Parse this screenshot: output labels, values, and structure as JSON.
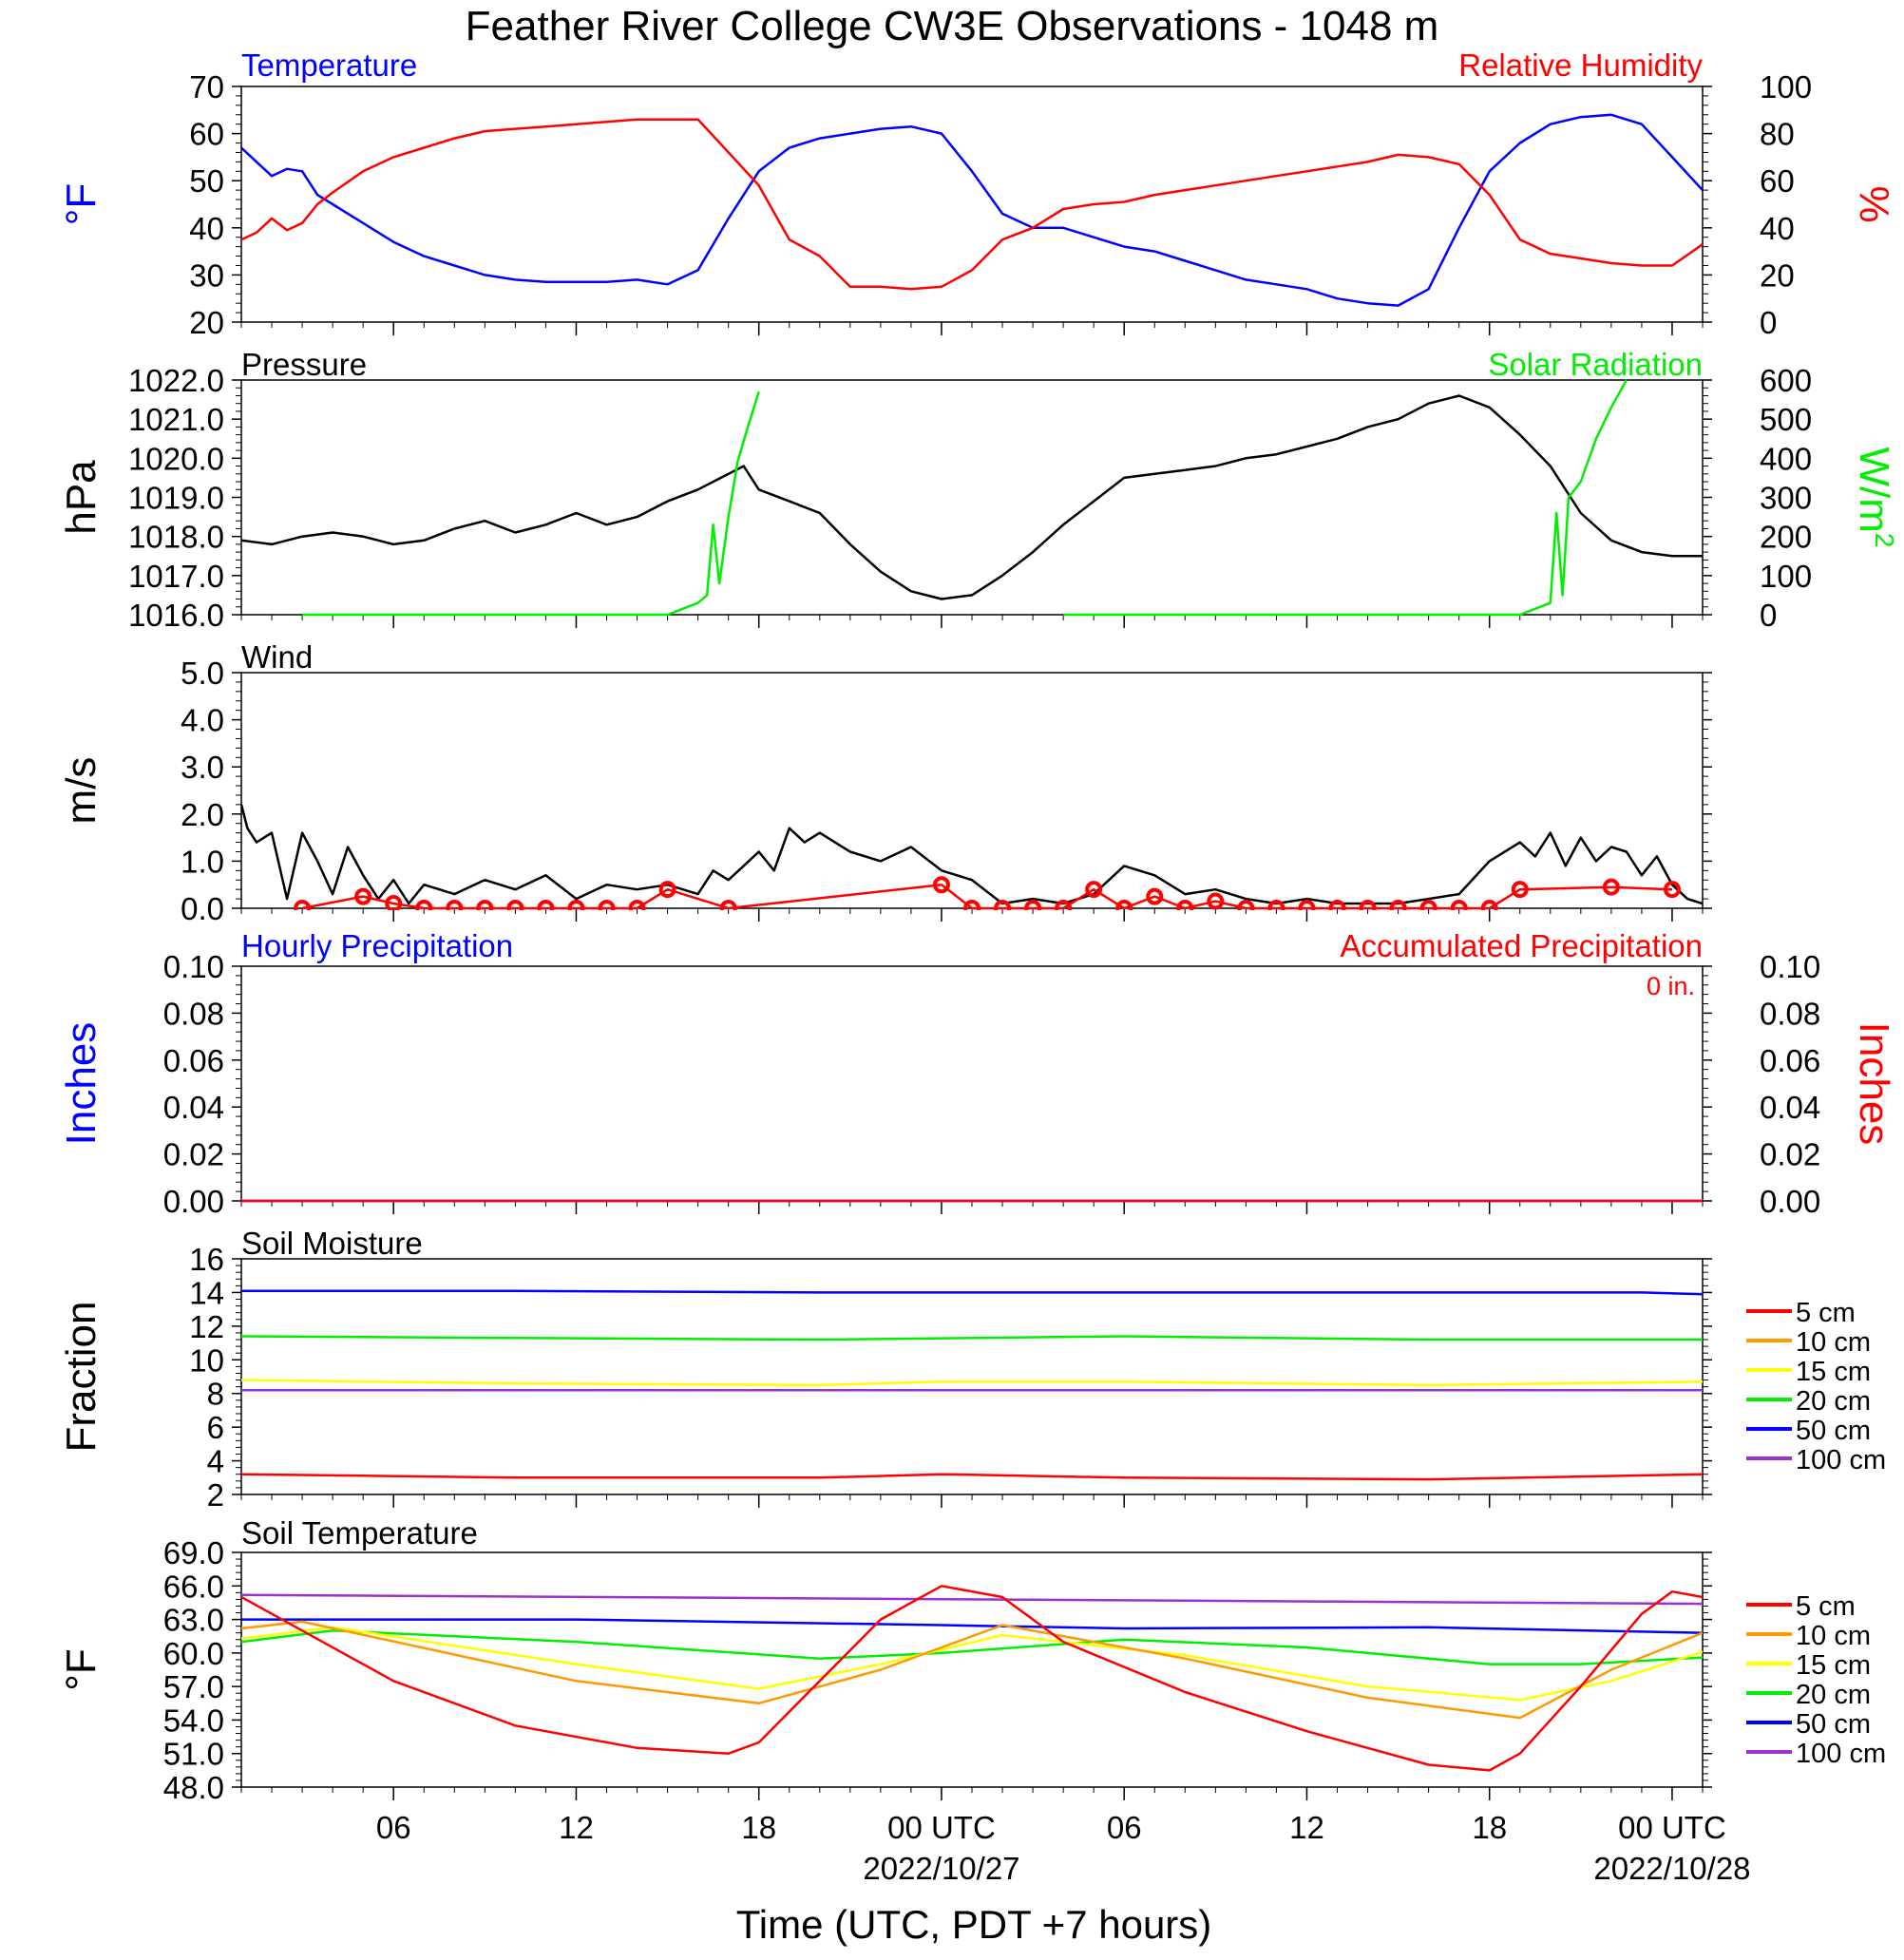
{
  "title": "Feather River College CW3E Observations - 1048 m",
  "xaxis": {
    "title": "Time (UTC, PDT +7 hours)",
    "range_hours": [
      1,
      49
    ],
    "ticks": [
      {
        "h": 6,
        "label": "06",
        "date": ""
      },
      {
        "h": 12,
        "label": "12",
        "date": ""
      },
      {
        "h": 18,
        "label": "18",
        "date": ""
      },
      {
        "h": 24,
        "label": "00 UTC",
        "date": "2022/10/27"
      },
      {
        "h": 30,
        "label": "06",
        "date": ""
      },
      {
        "h": 36,
        "label": "12",
        "date": ""
      },
      {
        "h": 42,
        "label": "18",
        "date": ""
      },
      {
        "h": 48,
        "label": "00 UTC",
        "date": "2022/10/28"
      }
    ]
  },
  "colors": {
    "blue": "#0000ff",
    "red": "#ff0000",
    "green": "#00ee00",
    "black": "#000000",
    "orange": "#ff9900",
    "yellow": "#ffff00",
    "purple": "#9933cc"
  },
  "chart_data": [
    {
      "id": "temp_rh",
      "type": "line",
      "title_left": "Temperature",
      "title_right": "Relative Humidity",
      "ylabel_left": "°F",
      "ylabel_right": "%",
      "ylim_left": [
        20,
        70
      ],
      "ylim_right": [
        0,
        100
      ],
      "yticks_left": [
        "70",
        "60",
        "50",
        "40",
        "30",
        "20"
      ],
      "yticks_right": [
        "100",
        "80",
        "60",
        "40",
        "20",
        "0"
      ],
      "series": [
        {
          "name": "Temperature",
          "axis": "left",
          "color": "#0000ff",
          "x": [
            1,
            1.5,
            2,
            2.5,
            3,
            3.5,
            4,
            5,
            6,
            7,
            8,
            9,
            10,
            11,
            12,
            13,
            14,
            15,
            16,
            17,
            18,
            19,
            20,
            21,
            22,
            23,
            24,
            25,
            26,
            27,
            28,
            29,
            30,
            31,
            32,
            33,
            34,
            35,
            36,
            37,
            38,
            39,
            40,
            41,
            42,
            43,
            44,
            45,
            46,
            47,
            48,
            49
          ],
          "y": [
            57,
            54,
            51,
            52.5,
            52,
            47,
            45,
            41,
            37,
            34,
            32,
            30,
            29,
            28.5,
            28.5,
            28.5,
            29,
            28,
            31,
            42,
            52,
            57,
            59,
            60,
            61,
            61.5,
            60,
            52,
            43,
            40,
            40,
            38,
            36,
            35,
            33,
            31,
            29,
            28,
            27,
            25,
            24,
            23.5,
            27,
            40,
            52,
            58,
            62,
            63.5,
            64,
            62,
            55,
            48
          ]
        },
        {
          "name": "Relative Humidity",
          "axis": "right",
          "color": "#ff0000",
          "x": [
            1,
            1.5,
            2,
            2.5,
            3,
            3.5,
            4,
            5,
            6,
            7,
            8,
            9,
            10,
            11,
            12,
            13,
            14,
            15,
            16,
            17,
            18,
            19,
            20,
            21,
            22,
            23,
            24,
            25,
            26,
            27,
            28,
            29,
            30,
            31,
            32,
            33,
            34,
            35,
            36,
            37,
            38,
            39,
            40,
            41,
            42,
            43,
            44,
            45,
            46,
            47,
            48,
            49
          ],
          "y": [
            35,
            38,
            44,
            39,
            42,
            50,
            55,
            64,
            70,
            74,
            78,
            81,
            82,
            83,
            84,
            85,
            86,
            86,
            86,
            72,
            58,
            35,
            28,
            15,
            15,
            14,
            15,
            22,
            35,
            40,
            48,
            50,
            51,
            54,
            56,
            58,
            60,
            62,
            64,
            66,
            68,
            71,
            70,
            67,
            54,
            35,
            29,
            27,
            25,
            24,
            24,
            33
          ]
        }
      ]
    },
    {
      "id": "pressure_solar",
      "type": "line",
      "title_left": "Pressure",
      "title_right": "Solar Radiation",
      "ylabel_left": "hPa",
      "ylabel_right": "W/m",
      "ylabel_right_sup": "2",
      "ylim_left": [
        1016,
        1022
      ],
      "ylim_right": [
        0,
        600
      ],
      "yticks_left": [
        "1022.0",
        "1021.0",
        "1020.0",
        "1019.0",
        "1018.0",
        "1017.0",
        "1016.0"
      ],
      "yticks_right": [
        "600",
        "500",
        "400",
        "300",
        "200",
        "100",
        "0"
      ],
      "series": [
        {
          "name": "Pressure",
          "axis": "left",
          "color": "#000000",
          "x": [
            1,
            2,
            3,
            4,
            5,
            6,
            7,
            8,
            9,
            10,
            11,
            12,
            13,
            14,
            15,
            16,
            17,
            17.5,
            18,
            19,
            20,
            21,
            22,
            23,
            24,
            25,
            26,
            27,
            28,
            29,
            30,
            31,
            32,
            33,
            34,
            35,
            36,
            37,
            38,
            39,
            40,
            41,
            42,
            43,
            44,
            45,
            46,
            47,
            48,
            49
          ],
          "y": [
            1017.9,
            1017.8,
            1018.0,
            1018.1,
            1018.0,
            1017.8,
            1017.9,
            1018.2,
            1018.4,
            1018.1,
            1018.3,
            1018.6,
            1018.3,
            1018.5,
            1018.9,
            1019.2,
            1019.6,
            1019.8,
            1019.2,
            1018.9,
            1018.6,
            1017.8,
            1017.1,
            1016.6,
            1016.4,
            1016.5,
            1017.0,
            1017.6,
            1018.3,
            1018.9,
            1019.5,
            1019.6,
            1019.7,
            1019.8,
            1020.0,
            1020.1,
            1020.3,
            1020.5,
            1020.8,
            1021.0,
            1021.4,
            1021.6,
            1021.3,
            1020.6,
            1019.8,
            1018.6,
            1017.9,
            1017.6,
            1017.5,
            1017.5
          ]
        },
        {
          "name": "Solar Radiation",
          "axis": "right",
          "color": "#00ee00",
          "x": [
            3,
            15,
            15.5,
            16,
            16.3,
            16.5,
            16.7,
            17,
            17.3,
            17.6,
            18
          ],
          "y": [
            0,
            0,
            15,
            30,
            50,
            230,
            80,
            250,
            390,
            470,
            570
          ],
          "x2": [
            28,
            43,
            43.5,
            44,
            44.2,
            44.4,
            44.6,
            45,
            45.5,
            46,
            46.5
          ],
          "y2": [
            0,
            0,
            15,
            30,
            260,
            50,
            300,
            340,
            450,
            530,
            600
          ]
        }
      ]
    },
    {
      "id": "wind",
      "type": "line",
      "title_left": "Wind",
      "ylabel_left": "m/s",
      "ylim_left": [
        0,
        5
      ],
      "yticks_left": [
        "5.0",
        "4.0",
        "3.0",
        "2.0",
        "1.0",
        "0.0"
      ],
      "series": [
        {
          "name": "Wind Speed",
          "axis": "left",
          "color": "#000000",
          "x": [
            1,
            1.2,
            1.5,
            2,
            2.5,
            3,
            3.5,
            4,
            4.5,
            5,
            5.5,
            6,
            6.5,
            7,
            8,
            9,
            10,
            11,
            12,
            13,
            14,
            15,
            16,
            16.5,
            17,
            17.5,
            18,
            18.5,
            19,
            19.5,
            20,
            21,
            22,
            23,
            24,
            25,
            26,
            27,
            28,
            29,
            30,
            31,
            32,
            33,
            34,
            35,
            36,
            37,
            38,
            39,
            40,
            41,
            42,
            43,
            43.5,
            44,
            44.5,
            45,
            45.5,
            46,
            46.5,
            47,
            47.5,
            48,
            48.5,
            49
          ],
          "y": [
            2.2,
            1.7,
            1.4,
            1.6,
            0.2,
            1.6,
            1.0,
            0.3,
            1.3,
            0.7,
            0.2,
            0.6,
            0.1,
            0.5,
            0.3,
            0.6,
            0.4,
            0.7,
            0.2,
            0.5,
            0.4,
            0.5,
            0.3,
            0.8,
            0.6,
            0.9,
            1.2,
            0.8,
            1.7,
            1.4,
            1.6,
            1.2,
            1.0,
            1.3,
            0.8,
            0.6,
            0.1,
            0.2,
            0.1,
            0.3,
            0.9,
            0.7,
            0.3,
            0.4,
            0.2,
            0.1,
            0.2,
            0.1,
            0.1,
            0.1,
            0.2,
            0.3,
            1.0,
            1.4,
            1.1,
            1.6,
            0.9,
            1.5,
            1.0,
            1.3,
            1.2,
            0.7,
            1.1,
            0.5,
            0.2,
            0.1
          ]
        },
        {
          "name": "Wind Direction",
          "axis": "left",
          "color": "#ff0000",
          "markers": true,
          "x": [
            3,
            5,
            6,
            7,
            8,
            9,
            10,
            11,
            12,
            13,
            14,
            15,
            17,
            24,
            25,
            26,
            27,
            28,
            29,
            30,
            31,
            32,
            33,
            34,
            35,
            36,
            37,
            38,
            39,
            40,
            41,
            42,
            43,
            46,
            48
          ],
          "y": [
            0,
            0.25,
            0.1,
            0,
            0,
            0,
            0,
            0,
            0,
            0,
            0,
            0.4,
            0,
            0.5,
            0,
            0,
            0,
            0,
            0.4,
            0,
            0.25,
            0,
            0.15,
            0,
            0,
            0,
            0,
            0,
            0,
            0,
            0,
            0,
            0.4,
            0.45,
            0.4
          ]
        }
      ]
    },
    {
      "id": "precip",
      "type": "line",
      "title_left": "Hourly Precipitation",
      "title_right": "Accumulated Precipitation",
      "annotation": "0 in.",
      "ylabel_left": "Inches",
      "ylabel_right": "Inches",
      "ylim_left": [
        0,
        0.1
      ],
      "ylim_right": [
        0,
        0.1
      ],
      "yticks_left": [
        "0.10",
        "0.08",
        "0.06",
        "0.04",
        "0.02",
        "0.00"
      ],
      "yticks_right": [
        "0.10",
        "0.08",
        "0.06",
        "0.04",
        "0.02",
        "0.00"
      ],
      "series": [
        {
          "name": "Hourly Precipitation",
          "axis": "left",
          "color": "#0000ff",
          "x": [
            1,
            49
          ],
          "y": [
            0,
            0
          ]
        },
        {
          "name": "Accumulated Precipitation",
          "axis": "right",
          "color": "#ff0000",
          "x": [
            1,
            49
          ],
          "y": [
            0,
            0
          ]
        }
      ]
    },
    {
      "id": "soil_moisture",
      "type": "line",
      "title_left": "Soil Moisture",
      "ylabel_left": "Fraction",
      "ylim_left": [
        2,
        16
      ],
      "yticks_left": [
        "16",
        "14",
        "12",
        "10",
        "8",
        "6",
        "4",
        "2"
      ],
      "legend": [
        "5 cm",
        "10 cm",
        "15 cm",
        "20 cm",
        "50 cm",
        "100 cm"
      ],
      "legend_colors": [
        "#ff0000",
        "#ff9900",
        "#ffff00",
        "#00ee00",
        "#0000ff",
        "#9933cc"
      ],
      "series": [
        {
          "name": "5 cm",
          "color": "#ff0000",
          "x": [
            1,
            10,
            20,
            24,
            30,
            40,
            49
          ],
          "y": [
            3.2,
            3.0,
            3.0,
            3.2,
            3.0,
            2.9,
            3.2
          ]
        },
        {
          "name": "15 cm",
          "color": "#ffff00",
          "x": [
            1,
            10,
            20,
            24,
            30,
            40,
            49
          ],
          "y": [
            8.8,
            8.6,
            8.5,
            8.7,
            8.7,
            8.5,
            8.7
          ]
        },
        {
          "name": "100 cm",
          "color": "#9933cc",
          "x": [
            1,
            49
          ],
          "y": [
            8.2,
            8.2
          ]
        },
        {
          "name": "20 cm",
          "color": "#00ee00",
          "x": [
            1,
            10,
            20,
            30,
            40,
            49
          ],
          "y": [
            11.4,
            11.3,
            11.2,
            11.4,
            11.2,
            11.2
          ]
        },
        {
          "name": "50 cm",
          "color": "#0000ff",
          "x": [
            1,
            10,
            20,
            30,
            40,
            47,
            49
          ],
          "y": [
            14.1,
            14.1,
            14.0,
            14.0,
            14.0,
            14.0,
            13.9
          ]
        }
      ]
    },
    {
      "id": "soil_temp",
      "type": "line",
      "title_left": "Soil Temperature",
      "ylabel_left": "°F",
      "ylim_left": [
        48,
        69
      ],
      "yticks_left": [
        "69.0",
        "66.0",
        "63.0",
        "60.0",
        "57.0",
        "54.0",
        "51.0",
        "48.0"
      ],
      "legend": [
        "5 cm",
        "10 cm",
        "15 cm",
        "20 cm",
        "50 cm",
        "100 cm"
      ],
      "legend_colors": [
        "#ff0000",
        "#ff9900",
        "#ffff00",
        "#00ee00",
        "#0000ff",
        "#9933cc"
      ],
      "series": [
        {
          "name": "100 cm",
          "color": "#9933cc",
          "x": [
            1,
            49
          ],
          "y": [
            65.2,
            64.4
          ]
        },
        {
          "name": "50 cm",
          "color": "#0000ff",
          "x": [
            1,
            12,
            24,
            30,
            40,
            49
          ],
          "y": [
            63.0,
            63.0,
            62.5,
            62.2,
            62.3,
            61.8
          ]
        },
        {
          "name": "20 cm",
          "color": "#00ee00",
          "x": [
            1,
            4,
            12,
            20,
            24,
            30,
            36,
            42,
            45,
            49
          ],
          "y": [
            61.0,
            62.0,
            61.0,
            59.5,
            60.0,
            61.2,
            60.5,
            59.0,
            59.0,
            59.6
          ]
        },
        {
          "name": "15 cm",
          "color": "#ffff00",
          "x": [
            1,
            4,
            12,
            18,
            22,
            26,
            32,
            38,
            43,
            46,
            49
          ],
          "y": [
            61.3,
            62.3,
            59.0,
            56.8,
            59.0,
            61.6,
            59.8,
            57.0,
            55.8,
            57.5,
            60.1
          ]
        },
        {
          "name": "10 cm",
          "color": "#ff9900",
          "x": [
            1,
            3,
            12,
            18,
            22,
            26,
            32,
            38,
            43,
            46,
            49
          ],
          "y": [
            62.2,
            62.8,
            57.5,
            55.5,
            58.5,
            62.5,
            59.5,
            56.0,
            54.2,
            58.5,
            61.8
          ]
        },
        {
          "name": "5 cm",
          "color": "#ff0000",
          "x": [
            1,
            3,
            6,
            10,
            14,
            17,
            18,
            20,
            22,
            24,
            26,
            28,
            32,
            36,
            40,
            42,
            43,
            45,
            47,
            48,
            49
          ],
          "y": [
            65.0,
            62.0,
            57.5,
            53.5,
            51.5,
            51.0,
            52.0,
            57.5,
            63.0,
            66.0,
            65.0,
            61.0,
            56.5,
            53.0,
            50.0,
            49.5,
            51.0,
            57.0,
            63.5,
            65.5,
            65.0
          ]
        }
      ]
    }
  ]
}
